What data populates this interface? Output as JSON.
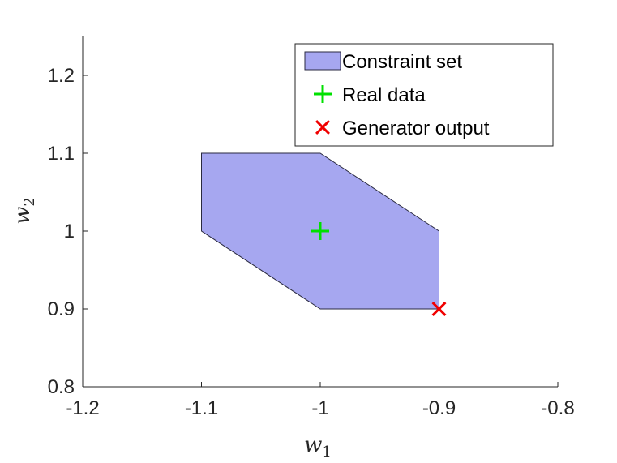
{
  "chart_data": {
    "type": "scatter",
    "xlim": [
      -1.2,
      -0.8
    ],
    "ylim": [
      0.8,
      1.25
    ],
    "xticks": [
      -1.2,
      -1.1,
      -1.0,
      -0.9,
      -0.8
    ],
    "yticks": [
      0.8,
      0.9,
      1.0,
      1.1,
      1.2
    ],
    "xtick_labels": [
      "-1.2",
      "-1.1",
      "-1",
      "-0.9",
      "-0.8"
    ],
    "ytick_labels": [
      "0.8",
      "0.9",
      "1",
      "1.1",
      "1.2"
    ],
    "xlabel": {
      "base": "w",
      "sub": "1"
    },
    "ylabel": {
      "base": "w",
      "sub": "2"
    },
    "grid": false,
    "legend_position": "top-right",
    "series": [
      {
        "name": "Constraint set",
        "kind": "polygon",
        "color": "#a6a7f0",
        "edge_color": "#2a2a40",
        "points": [
          [
            -1.1,
            1.1
          ],
          [
            -1.0,
            1.1
          ],
          [
            -0.9,
            1.0
          ],
          [
            -0.9,
            0.9
          ],
          [
            -1.0,
            0.9
          ],
          [
            -1.1,
            1.0
          ]
        ]
      },
      {
        "name": "Real data",
        "kind": "marker",
        "marker": "plus",
        "color": "#00e000",
        "points": [
          [
            -1.0,
            1.0
          ]
        ]
      },
      {
        "name": "Generator output",
        "kind": "marker",
        "marker": "cross",
        "color": "#f00000",
        "points": [
          [
            -0.9,
            0.9
          ]
        ]
      }
    ]
  }
}
